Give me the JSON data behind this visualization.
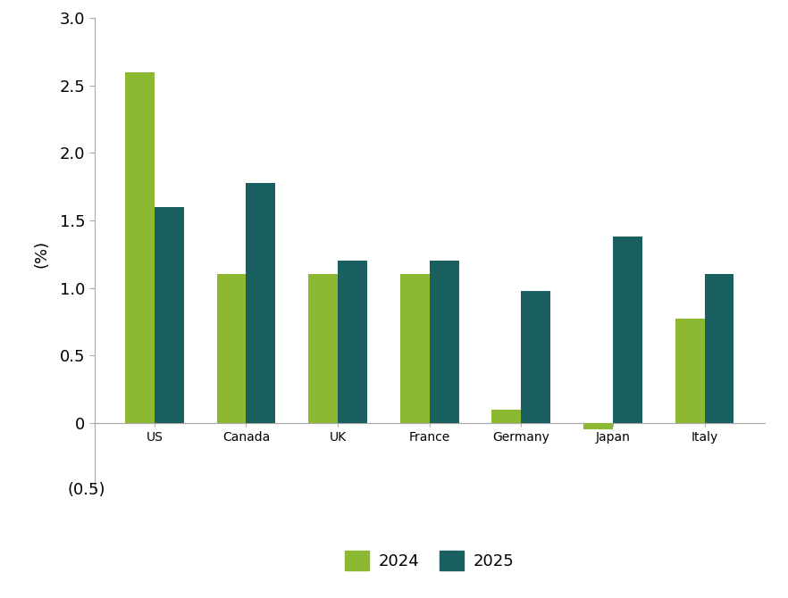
{
  "categories": [
    "US",
    "Canada",
    "UK",
    "France",
    "Germany",
    "Japan",
    "Italy"
  ],
  "values_2024": [
    2.6,
    1.1,
    1.1,
    1.1,
    0.1,
    -0.05,
    0.77
  ],
  "values_2025": [
    1.6,
    1.78,
    1.2,
    1.2,
    0.98,
    1.38,
    1.1
  ],
  "color_2024": "#8db832",
  "color_2025": "#1a6060",
  "ylabel": "(%)",
  "ylim": [
    -0.5,
    3.0
  ],
  "yticks": [
    0.0,
    0.5,
    1.0,
    1.5,
    2.0,
    2.5,
    3.0
  ],
  "ytick_labels": [
    "0",
    "0.5",
    "1.0",
    "1.5",
    "2.0",
    "2.5",
    "3.0"
  ],
  "legend_2024": "2024",
  "legend_2025": "2025",
  "bar_width": 0.32,
  "background_color": "#ffffff"
}
